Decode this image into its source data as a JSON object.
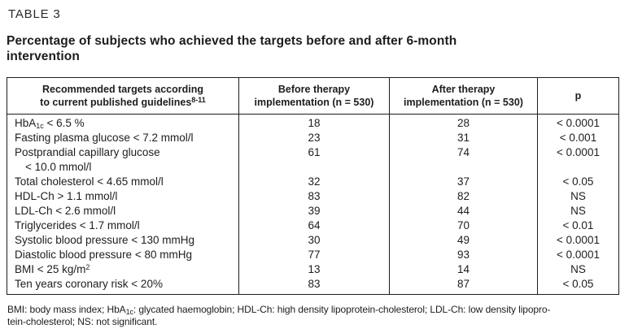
{
  "colors": {
    "text": "#1d1d1b",
    "border": "#1d1d1b",
    "background": "#ffffff"
  },
  "page": {
    "table_label": "TABLE 3",
    "title": "Percentage of subjects who achieved the targets before and after 6-month\nintervention"
  },
  "table": {
    "headers": {
      "targets": {
        "line1": "Recommended targets according",
        "line2": "to current published guidelines",
        "line2_sup": "8-11"
      },
      "before": "Before therapy\nimplementation (n = 530)",
      "after": "After therapy\nimplementation (n = 530)",
      "p": "p"
    },
    "rows": [
      {
        "label": [
          {
            "text": "HbA"
          },
          {
            "sub": "1c"
          },
          {
            "text": " < 6.5 %"
          }
        ],
        "before": "18",
        "after": "28",
        "p": "< 0.0001"
      },
      {
        "label": [
          {
            "text": "Fasting plasma glucose < 7.2 mmol/l"
          }
        ],
        "before": "23",
        "after": "31",
        "p": "< 0.001"
      },
      {
        "label": [
          {
            "text": "Postprandial capillary glucose"
          },
          {
            "br": true
          },
          {
            "text": "< 10.0 mmol/l",
            "indent": true
          }
        ],
        "before": "61",
        "after": "74",
        "p": "< 0.0001"
      },
      {
        "label": [
          {
            "text": "Total cholesterol < 4.65 mmol/l"
          }
        ],
        "before": "32",
        "after": "37",
        "p": "< 0.05"
      },
      {
        "label": [
          {
            "text": "HDL-Ch > 1.1 mmol/l"
          }
        ],
        "before": "83",
        "after": "82",
        "p": "NS"
      },
      {
        "label": [
          {
            "text": "LDL-Ch < 2.6 mmol/l"
          }
        ],
        "before": "39",
        "after": "44",
        "p": "NS"
      },
      {
        "label": [
          {
            "text": "Triglycerides < 1.7 mmol/l"
          }
        ],
        "before": "64",
        "after": "70",
        "p": "< 0.01"
      },
      {
        "label": [
          {
            "text": "Systolic blood pressure < 130 mmHg"
          }
        ],
        "before": "30",
        "after": "49",
        "p": "< 0.0001"
      },
      {
        "label": [
          {
            "text": "Diastolic blood pressure < 80 mmHg"
          }
        ],
        "before": "77",
        "after": "93",
        "p": "< 0.0001"
      },
      {
        "label": [
          {
            "text": "BMI < 25 kg/m"
          },
          {
            "sup": "2"
          }
        ],
        "before": "13",
        "after": "14",
        "p": "NS"
      },
      {
        "label": [
          {
            "text": "Ten years coronary risk < 20%"
          }
        ],
        "before": "83",
        "after": "87",
        "p": "< 0.05"
      }
    ]
  },
  "footnote": {
    "parts": [
      {
        "text": "BMI: body mass index; HbA"
      },
      {
        "sub": "1c"
      },
      {
        "text": ": glycated haemoglobin; HDL-Ch: high density lipoprotein-cholesterol; LDL-Ch: low density lipopro-"
      },
      {
        "br": true
      },
      {
        "text": "tein-cholesterol; NS: not significant."
      }
    ]
  }
}
